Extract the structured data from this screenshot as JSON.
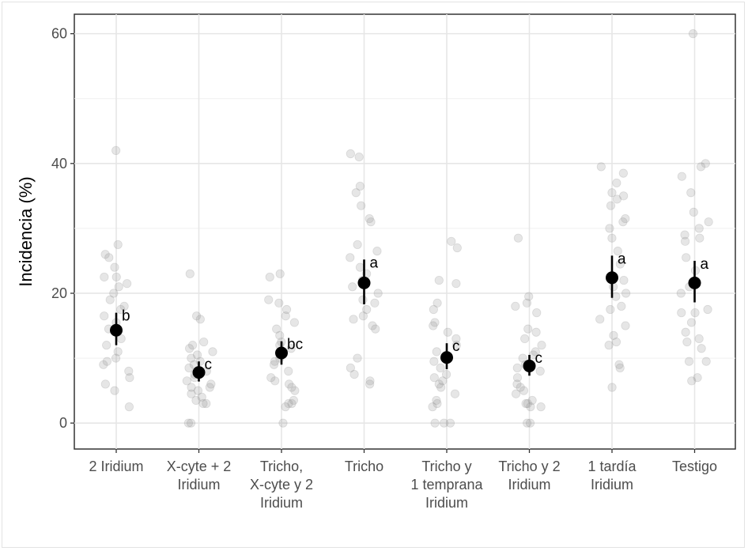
{
  "chart_data": {
    "type": "scatter",
    "title": "",
    "xlabel": "",
    "ylabel": "Incidencia (%)",
    "ylim": [
      -4,
      63
    ],
    "yticks": [
      0,
      20,
      40,
      60
    ],
    "grid": true,
    "categories": [
      [
        "2 Iridium"
      ],
      [
        "X-cyte + 2",
        "Iridium"
      ],
      [
        "Tricho,",
        "X-cyte y 2",
        "Iridium"
      ],
      [
        "Tricho"
      ],
      [
        "Tricho y",
        "1 temprana",
        "Iridium"
      ],
      [
        "Tricho y 2",
        "Iridium"
      ],
      [
        "1 tardía",
        "Iridium"
      ],
      [
        "Testigo"
      ]
    ],
    "means": [
      14.3,
      7.8,
      10.8,
      21.6,
      10.1,
      8.8,
      22.4,
      21.6
    ],
    "ci_low": [
      12.0,
      6.4,
      9.0,
      18.3,
      8.3,
      7.3,
      19.3,
      18.6
    ],
    "ci_high": [
      17.0,
      9.5,
      12.6,
      25.2,
      12.3,
      10.5,
      25.8,
      25.0
    ],
    "letters": [
      "b",
      "c",
      "bc",
      "a",
      "c",
      "c",
      "a",
      "a"
    ],
    "observations": [
      [
        42.0,
        27.5,
        26.0,
        25.5,
        24.0,
        22.5,
        22.5,
        21.5,
        21.0,
        20.0,
        19.0,
        18.0,
        17.5,
        16.5,
        15.5,
        14.5,
        13.0,
        12.0,
        11.0,
        10.0,
        9.5,
        9.0,
        8.0,
        7.0,
        6.0,
        5.0,
        2.5
      ],
      [
        23.0,
        16.5,
        16.0,
        12.5,
        12.0,
        11.5,
        11.0,
        10.5,
        10.0,
        9.5,
        9.0,
        8.5,
        8.0,
        7.5,
        7.0,
        6.5,
        6.0,
        5.5,
        5.5,
        5.0,
        4.5,
        4.0,
        3.5,
        3.0,
        3.0,
        0.0,
        0.0
      ],
      [
        23.0,
        22.5,
        19.0,
        18.5,
        17.5,
        16.5,
        15.5,
        14.5,
        13.5,
        12.5,
        12.0,
        11.5,
        10.5,
        10.0,
        9.5,
        9.0,
        8.0,
        7.0,
        6.5,
        6.0,
        5.5,
        5.0,
        3.5,
        3.0,
        3.0,
        2.5,
        0.0
      ],
      [
        41.5,
        41.0,
        36.5,
        35.5,
        33.5,
        31.5,
        31.0,
        27.5,
        26.5,
        25.5,
        24.0,
        23.0,
        22.0,
        21.0,
        20.0,
        19.0,
        18.5,
        17.5,
        16.5,
        16.0,
        15.0,
        14.5,
        10.0,
        8.5,
        7.5,
        6.5,
        6.0
      ],
      [
        28.0,
        27.0,
        22.0,
        21.5,
        18.5,
        17.5,
        15.5,
        15.0,
        14.0,
        13.0,
        12.0,
        11.0,
        10.5,
        9.5,
        8.5,
        7.5,
        7.0,
        6.5,
        6.0,
        5.5,
        4.5,
        3.5,
        3.0,
        2.5,
        0.0,
        0.0,
        0.0
      ],
      [
        28.5,
        19.5,
        18.5,
        18.0,
        17.0,
        14.5,
        14.0,
        13.0,
        12.0,
        11.0,
        10.5,
        10.0,
        9.0,
        8.5,
        8.0,
        7.0,
        6.0,
        5.5,
        5.0,
        4.5,
        3.5,
        3.0,
        3.0,
        2.5,
        2.5,
        0.0,
        0.0
      ],
      [
        39.5,
        38.5,
        37.0,
        35.5,
        35.0,
        34.5,
        33.5,
        31.5,
        31.0,
        30.0,
        28.5,
        26.5,
        24.5,
        22.0,
        21.0,
        20.0,
        19.5,
        18.0,
        17.5,
        16.0,
        15.0,
        13.5,
        12.5,
        12.0,
        9.0,
        8.5,
        5.5
      ],
      [
        60.0,
        40.0,
        39.5,
        38.0,
        35.5,
        32.5,
        31.0,
        30.0,
        29.0,
        28.5,
        28.0,
        25.5,
        23.5,
        21.0,
        20.0,
        17.5,
        17.0,
        17.0,
        15.5,
        14.0,
        13.0,
        12.5,
        11.5,
        9.5,
        9.5,
        7.0,
        6.5
      ]
    ]
  }
}
